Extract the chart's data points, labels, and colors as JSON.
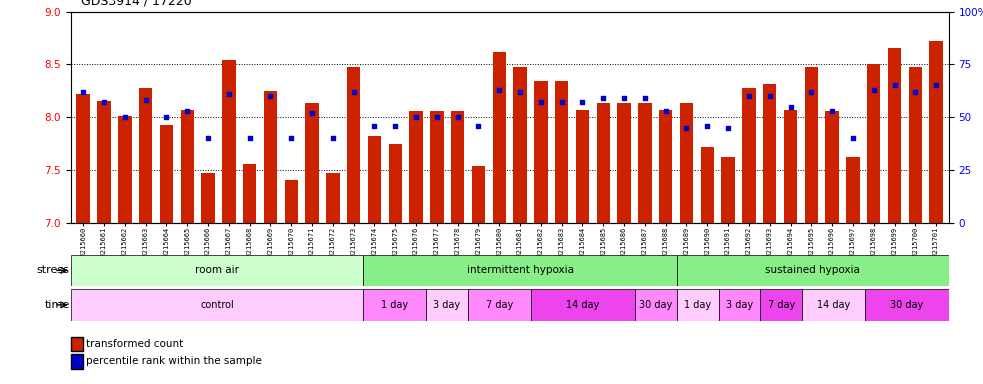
{
  "title": "GDS3914 / 17220",
  "samples": [
    "GSM215660",
    "GSM215661",
    "GSM215662",
    "GSM215663",
    "GSM215664",
    "GSM215665",
    "GSM215666",
    "GSM215667",
    "GSM215668",
    "GSM215669",
    "GSM215670",
    "GSM215671",
    "GSM215672",
    "GSM215673",
    "GSM215674",
    "GSM215675",
    "GSM215676",
    "GSM215677",
    "GSM215678",
    "GSM215679",
    "GSM215680",
    "GSM215681",
    "GSM215682",
    "GSM215683",
    "GSM215684",
    "GSM215685",
    "GSM215686",
    "GSM215687",
    "GSM215688",
    "GSM215689",
    "GSM215690",
    "GSM215691",
    "GSM215692",
    "GSM215693",
    "GSM215694",
    "GSM215695",
    "GSM215696",
    "GSM215697",
    "GSM215698",
    "GSM215699",
    "GSM215700",
    "GSM215701"
  ],
  "bar_values": [
    8.22,
    8.15,
    8.01,
    8.28,
    7.93,
    8.07,
    7.47,
    8.54,
    7.56,
    8.25,
    7.4,
    8.13,
    7.47,
    8.47,
    7.82,
    7.75,
    8.06,
    8.06,
    8.06,
    7.54,
    8.62,
    8.47,
    8.34,
    8.34,
    8.07,
    8.13,
    8.13,
    8.13,
    8.07,
    8.13,
    7.72,
    7.62,
    8.28,
    8.31,
    8.07,
    8.47,
    8.06,
    7.62,
    8.5,
    8.65,
    8.47,
    8.72
  ],
  "percentile_values": [
    62,
    57,
    50,
    58,
    50,
    53,
    40,
    61,
    40,
    60,
    40,
    52,
    40,
    62,
    46,
    46,
    50,
    50,
    50,
    46,
    63,
    62,
    57,
    57,
    57,
    59,
    59,
    59,
    53,
    45,
    46,
    45,
    60,
    60,
    55,
    62,
    53,
    40,
    63,
    65,
    62,
    65
  ],
  "ylim_left": [
    7,
    9
  ],
  "ylim_right": [
    0,
    100
  ],
  "bar_color": "#CC2200",
  "dot_color": "#0000CC",
  "bg_color": "#FFFFFF",
  "yticks_left": [
    7,
    7.5,
    8,
    8.5,
    9
  ],
  "yticks_right": [
    0,
    25,
    50,
    75,
    100
  ],
  "stress_groups": [
    {
      "label": "room air",
      "start": 0,
      "end": 14,
      "color": "#CCFFCC"
    },
    {
      "label": "intermittent hypoxia",
      "start": 14,
      "end": 29,
      "color": "#88EE88"
    },
    {
      "label": "sustained hypoxia",
      "start": 29,
      "end": 42,
      "color": "#88EE88"
    }
  ],
  "time_groups": [
    {
      "label": "control",
      "start": 0,
      "end": 14,
      "color": "#FFCCFF"
    },
    {
      "label": "1 day",
      "start": 14,
      "end": 17,
      "color": "#FF88FF"
    },
    {
      "label": "3 day",
      "start": 17,
      "end": 19,
      "color": "#FFCCFF"
    },
    {
      "label": "7 day",
      "start": 19,
      "end": 22,
      "color": "#FF88FF"
    },
    {
      "label": "14 day",
      "start": 22,
      "end": 27,
      "color": "#FF44EE"
    },
    {
      "label": "30 day",
      "start": 27,
      "end": 29,
      "color": "#FF88FF"
    },
    {
      "label": "1 day",
      "start": 29,
      "end": 31,
      "color": "#FFCCFF"
    },
    {
      "label": "3 day",
      "start": 31,
      "end": 33,
      "color": "#FF88FF"
    },
    {
      "label": "7 day",
      "start": 33,
      "end": 35,
      "color": "#FF44EE"
    },
    {
      "label": "14 day",
      "start": 35,
      "end": 38,
      "color": "#FFCCFF"
    },
    {
      "label": "30 day",
      "start": 38,
      "end": 42,
      "color": "#FF44EE"
    }
  ]
}
